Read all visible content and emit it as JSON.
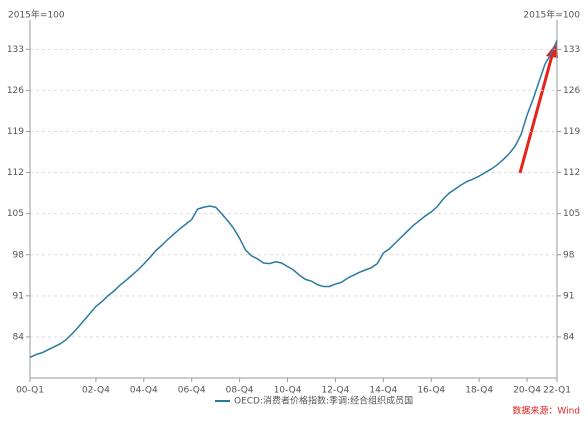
{
  "chart_data": {
    "type": "line",
    "ylabel": "2015年=100",
    "y2label": "2015年=100",
    "categories": [
      "00-Q1",
      null,
      null,
      null,
      null,
      null,
      null,
      null,
      null,
      null,
      null,
      "02-Q4",
      null,
      null,
      null,
      null,
      null,
      null,
      null,
      "04-Q4",
      null,
      null,
      null,
      null,
      null,
      null,
      null,
      "06-Q4",
      null,
      null,
      null,
      null,
      null,
      null,
      null,
      "08-Q4",
      null,
      null,
      null,
      null,
      null,
      null,
      null,
      "10-Q4",
      null,
      null,
      null,
      null,
      null,
      null,
      null,
      "12-Q4",
      null,
      null,
      null,
      null,
      null,
      null,
      null,
      "14-Q4",
      null,
      null,
      null,
      null,
      null,
      null,
      null,
      "16-Q4",
      null,
      null,
      null,
      null,
      null,
      null,
      null,
      "18-Q4",
      null,
      null,
      null,
      null,
      null,
      null,
      null,
      "20-Q4",
      null,
      null,
      null,
      null,
      "22-Q1"
    ],
    "series": [
      {
        "name": "OECD:消费者价格指数:季调:经合组织成员国",
        "color": "#2a7aa0",
        "values": [
          80.5,
          81,
          81.3,
          81.8,
          82.3,
          82.8,
          83.5,
          84.5,
          85.6,
          86.8,
          88.0,
          89.2,
          90.0,
          91.0,
          91.8,
          92.8,
          93.6,
          94.5,
          95.4,
          96.4,
          97.5,
          98.7,
          99.6,
          100.6,
          101.5,
          102.4,
          103.2,
          104.0,
          105.8,
          106.1,
          106.3,
          106.1,
          105.0,
          103.8,
          102.5,
          100.8,
          98.8,
          97.8,
          97.3,
          96.6,
          96.5,
          96.8,
          96.6,
          96.0,
          95.4,
          94.5,
          93.8,
          93.5,
          92.9,
          92.6,
          92.6,
          93.0,
          93.3,
          94.0,
          94.5,
          95.0,
          95.4,
          95.8,
          96.5,
          98.3,
          99.0,
          100.0,
          101.0,
          102.0,
          103.0,
          103.8,
          104.6,
          105.3,
          106.2,
          107.5,
          108.5,
          109.2,
          109.9,
          110.5,
          110.9,
          111.4,
          112.0,
          112.6,
          113.3,
          114.2,
          115.2,
          116.5,
          118.5,
          121.8,
          124.5,
          127.5,
          130.5,
          132.2,
          134.5
        ]
      }
    ],
    "ylim": [
      77,
      138
    ],
    "yticks": [
      84,
      91,
      98,
      105,
      112,
      119,
      126,
      133
    ],
    "y2lim": [
      77,
      138
    ],
    "y2ticks": [
      84,
      91,
      98,
      105,
      112,
      119,
      126,
      133
    ],
    "grid": true,
    "source": "数据来源：Wind"
  }
}
